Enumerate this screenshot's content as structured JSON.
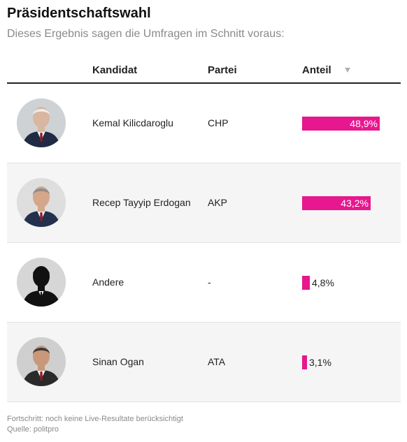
{
  "title": "Präsidentschaftswahl",
  "subtitle": "Dieses Ergebnis sagen die Umfragen im Schnitt voraus:",
  "headers": {
    "candidate": "Kandidat",
    "party": "Partei",
    "share": "Anteil",
    "sort_icon": "sort-down-icon"
  },
  "bar_color": "#e6178f",
  "chart_data": {
    "type": "bar",
    "orientation": "horizontal",
    "categories": [
      "Kemal Kilicdaroglu",
      "Recep Tayyip Erdogan",
      "Andere",
      "Sinan Ogan"
    ],
    "values": [
      48.9,
      43.2,
      4.8,
      3.1
    ],
    "unit": "%",
    "xlim": [
      0,
      55
    ],
    "title": "Präsidentschaftswahl"
  },
  "rows": [
    {
      "name": "Kemal Kilicdaroglu",
      "party": "CHP",
      "share": 48.9,
      "share_label": "48,9%",
      "photo": "portrait-kilicdaroglu"
    },
    {
      "name": "Recep Tayyip Erdogan",
      "party": "AKP",
      "share": 43.2,
      "share_label": "43,2%",
      "photo": "portrait-erdogan"
    },
    {
      "name": "Andere",
      "party": "-",
      "share": 4.8,
      "share_label": "4,8%",
      "photo": "silhouette-placeholder"
    },
    {
      "name": "Sinan Ogan",
      "party": "ATA",
      "share": 3.1,
      "share_label": "3,1%",
      "photo": "portrait-ogan"
    }
  ],
  "footer": {
    "progress": "Fortschritt: noch keine Live-Resultate berücksichtigt",
    "source": "Quelle: politpro"
  }
}
